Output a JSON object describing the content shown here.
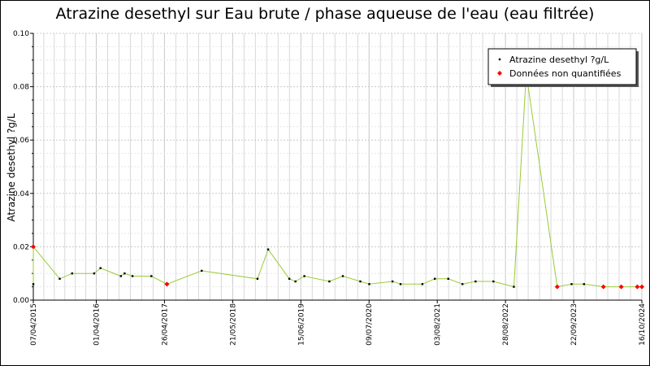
{
  "chart_data": {
    "type": "line",
    "title": "Atrazine desethyl sur Eau brute / phase aqueuse de l'eau (eau filtrée)",
    "ylabel": "Atrazine desethyl ?g/L",
    "xlabel": "",
    "ylim": [
      0,
      0.1
    ],
    "y_ticks": [
      "0.00",
      "0.02",
      "0.04",
      "0.06",
      "0.08",
      "0.10"
    ],
    "x_range": [
      "2015-04-07",
      "2024-10-16"
    ],
    "x_tick_labels": [
      {
        "date": "2015-04-07",
        "label": "07/04/2015"
      },
      {
        "date": "2016-04-01",
        "label": "01/04/2016"
      },
      {
        "date": "2017-04-26",
        "label": "26/04/2017"
      },
      {
        "date": "2018-05-21",
        "label": "21/05/2018"
      },
      {
        "date": "2019-06-15",
        "label": "15/06/2019"
      },
      {
        "date": "2020-07-09",
        "label": "09/07/2020"
      },
      {
        "date": "2021-08-03",
        "label": "03/08/2021"
      },
      {
        "date": "2022-08-28",
        "label": "28/08/2022"
      },
      {
        "date": "2023-09-22",
        "label": "22/09/2023"
      },
      {
        "date": "2024-10-16",
        "label": "16/10/2024"
      }
    ],
    "grid": true,
    "legend_position": "top-right",
    "line_color": "#99cc33",
    "series": [
      {
        "name": "Atrazine desethyl ?g/L",
        "marker_color": "#000000",
        "points": [
          {
            "x": "2015-04-07",
            "y": 0.006
          },
          {
            "x": "2015-09-05",
            "y": 0.008
          },
          {
            "x": "2015-11-15",
            "y": 0.01
          },
          {
            "x": "2016-03-20",
            "y": 0.01
          },
          {
            "x": "2016-04-25",
            "y": 0.012
          },
          {
            "x": "2016-08-20",
            "y": 0.009
          },
          {
            "x": "2016-09-10",
            "y": 0.01
          },
          {
            "x": "2016-10-25",
            "y": 0.009
          },
          {
            "x": "2017-02-10",
            "y": 0.009
          },
          {
            "x": "2017-11-25",
            "y": 0.011
          },
          {
            "x": "2018-10-10",
            "y": 0.008
          },
          {
            "x": "2018-12-10",
            "y": 0.019
          },
          {
            "x": "2019-04-10",
            "y": 0.008
          },
          {
            "x": "2019-05-15",
            "y": 0.007
          },
          {
            "x": "2019-07-05",
            "y": 0.009
          },
          {
            "x": "2019-11-25",
            "y": 0.007
          },
          {
            "x": "2020-02-10",
            "y": 0.009
          },
          {
            "x": "2020-05-20",
            "y": 0.007
          },
          {
            "x": "2020-07-10",
            "y": 0.006
          },
          {
            "x": "2020-11-20",
            "y": 0.007
          },
          {
            "x": "2021-01-05",
            "y": 0.006
          },
          {
            "x": "2021-05-10",
            "y": 0.006
          },
          {
            "x": "2021-07-20",
            "y": 0.008
          },
          {
            "x": "2021-10-05",
            "y": 0.008
          },
          {
            "x": "2021-12-25",
            "y": 0.006
          },
          {
            "x": "2022-03-10",
            "y": 0.007
          },
          {
            "x": "2022-06-20",
            "y": 0.007
          },
          {
            "x": "2022-10-15",
            "y": 0.005
          },
          {
            "x": "2022-12-25",
            "y": 0.085
          },
          {
            "x": "2023-09-10",
            "y": 0.006
          },
          {
            "x": "2023-11-20",
            "y": 0.006
          }
        ]
      },
      {
        "name": "Données non quantifiées",
        "marker_color": "#ff0000",
        "points": [
          {
            "x": "2015-04-07",
            "y": 0.02
          },
          {
            "x": "2017-05-10",
            "y": 0.006
          },
          {
            "x": "2023-06-20",
            "y": 0.005
          },
          {
            "x": "2024-03-10",
            "y": 0.005
          },
          {
            "x": "2024-06-20",
            "y": 0.005
          },
          {
            "x": "2024-09-20",
            "y": 0.005
          },
          {
            "x": "2024-10-16",
            "y": 0.005
          }
        ]
      }
    ]
  }
}
